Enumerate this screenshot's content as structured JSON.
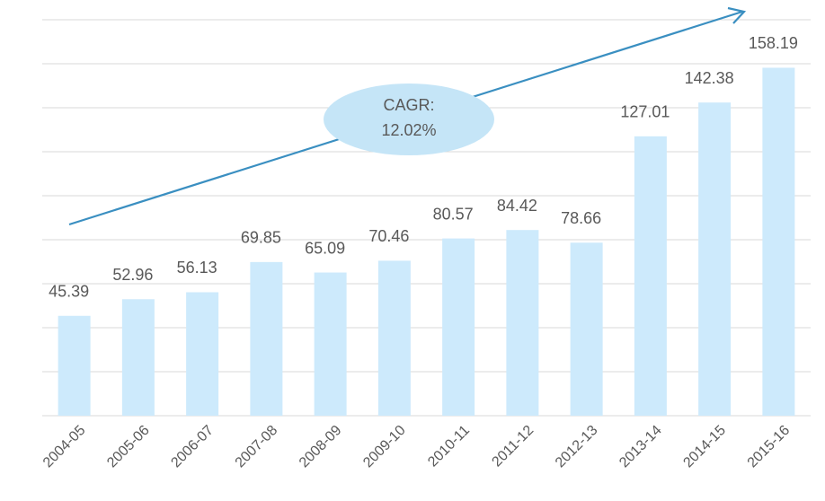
{
  "chart_data": {
    "type": "bar",
    "categories": [
      "2004-05",
      "2005-06",
      "2006-07",
      "2007-08",
      "2008-09",
      "2009-10",
      "2010-11",
      "2011-12",
      "2012-13",
      "2013-14",
      "2014-15",
      "2015-16"
    ],
    "values": [
      45.39,
      52.96,
      56.13,
      69.85,
      65.09,
      70.46,
      80.57,
      84.42,
      78.66,
      127.01,
      142.38,
      158.19
    ],
    "color": "#cdeafc",
    "ylim": [
      0,
      180
    ],
    "yticks": [
      0,
      20,
      40,
      60,
      80,
      100,
      120,
      140,
      160,
      180
    ],
    "grid": true,
    "annotation": [
      "CAGR:",
      "12.02%"
    ]
  }
}
